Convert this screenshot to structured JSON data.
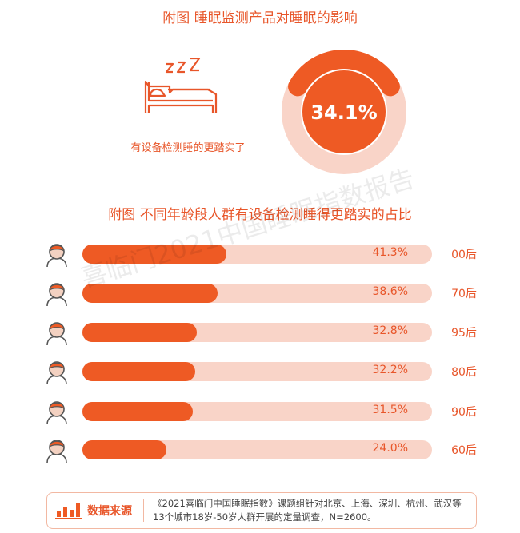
{
  "title1": "附图  睡眠监测产品对睡眠的影响",
  "highlight": {
    "label": "有设备检测睡的更踏实了",
    "value": 34.1,
    "value_text": "34.1%",
    "icon": "bed-sleeping-icon"
  },
  "title2": "附图  不同年龄段人群有设备检测睡得更踏实的占比",
  "watermark": "喜临门2021中国睡眠指数报告",
  "colors": {
    "accent": "#ee5a24",
    "track": "#f9d4c8",
    "text": "#e8562a"
  },
  "chart_data": {
    "type": "bar",
    "orientation": "horizontal",
    "categories": [
      "00后",
      "70后",
      "95后",
      "80后",
      "90后",
      "60后"
    ],
    "values": [
      41.3,
      38.6,
      32.8,
      32.2,
      31.5,
      24.0
    ],
    "value_labels": [
      "41.3%",
      "38.6%",
      "32.8%",
      "32.2%",
      "31.5%",
      "24.0%"
    ],
    "xlim": [
      0,
      100
    ],
    "unit": "%"
  },
  "source": {
    "label": "数据来源",
    "text": "《2021喜临门中国睡眠指数》课题组针对北京、上海、深圳、杭州、武汉等13个城市18岁-50岁人群开展的定量调查，N=2600。",
    "icon": "bar-chart-icon"
  }
}
